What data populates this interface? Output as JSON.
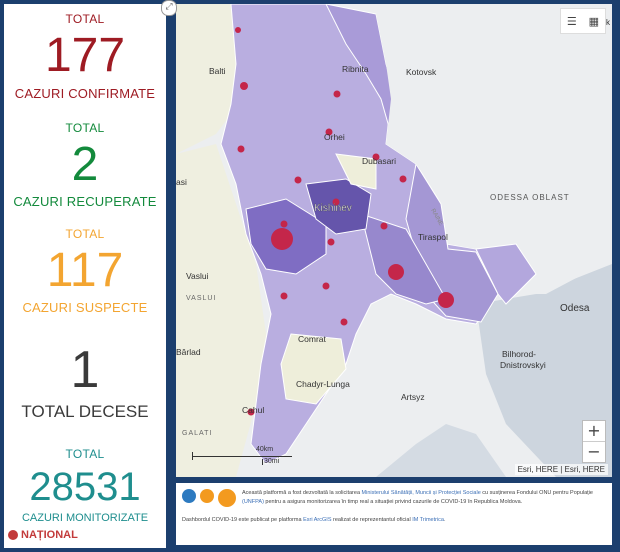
{
  "stats": {
    "confirmed": {
      "label": "TOTAL",
      "value": "177",
      "caption": "CAZURI CONFIRMATE",
      "color": "#9e1b23"
    },
    "recovered": {
      "label": "TOTAL",
      "value": "2",
      "caption": "CAZURI RECUPERATE",
      "color": "#138a3c"
    },
    "suspect": {
      "label": "TOTAL",
      "value": "117",
      "caption": "CAZURI SUSPECTE",
      "color": "#f3a531"
    },
    "deaths": {
      "value": "1",
      "caption": "TOTAL DECESE",
      "color": "#3a3a3a"
    },
    "monitored": {
      "label": "TOTAL",
      "value": "28531",
      "caption": "CAZURI MONITORIZATE",
      "color": "#1f8e8e"
    }
  },
  "map": {
    "labels": {
      "balti": "Balti",
      "ribnita": "Ribnita",
      "kotovsk": "Kotovsk",
      "orhei": "Orhei",
      "dubasari": "Dubasari",
      "ungheni": "asi",
      "kishinev": "Kishinev",
      "odessa_oblast": "ODESSA OBLAST",
      "tiraspol": "Tiraspol",
      "vaslui": "Vaslui",
      "vaslui2": "VASLUI",
      "odesa": "Odesa",
      "barlad": "Bârlad",
      "comrat": "Comrat",
      "bilhorod": "Bilhorod-",
      "dnistrovskyi": "Dnistrovskyi",
      "chadyr": "Chadyr-Lunga",
      "artsyz": "Artsyz",
      "cahul": "Cahul",
      "galati": "GALATI",
      "raine": "RAINE",
      "k": "k"
    },
    "scale": {
      "top": "40km",
      "bottom": "30mi"
    },
    "attribution": "Esri, HERE | Esri, HERE",
    "zoom": {
      "in": "+",
      "out": "−"
    },
    "colors": {
      "region": "#b5a8de",
      "region_dark": "#8e7cc9",
      "capital": "#6c5bb0",
      "dot": "#c4264a",
      "land": "#eff0e0",
      "water": "#ccd4dd"
    }
  },
  "footer": {
    "line1_a": "Această platformă a fost dezvoltată la solicitarea ",
    "line1_link": "Ministerului Sănătății, Muncii și Protecției Sociale",
    "line1_b": " cu susținerea Fondului ONU pentru Populație ",
    "line2_link": "(UNFPA)",
    "line2_b": " pentru a asigura monitorizarea în timp real a situației privind cazurile de  COVID-19 în Republica Moldova.",
    "line3_a": "Dashbordul COVID-19 este publicat pe platforma ",
    "line3_link": "Esri ArcGIS",
    "line3_b": " realizat de reprezentantul oficial ",
    "line3_link2": "IM Trimetrica",
    "line3_c": "."
  },
  "watermark": "NAȚIONAL"
}
